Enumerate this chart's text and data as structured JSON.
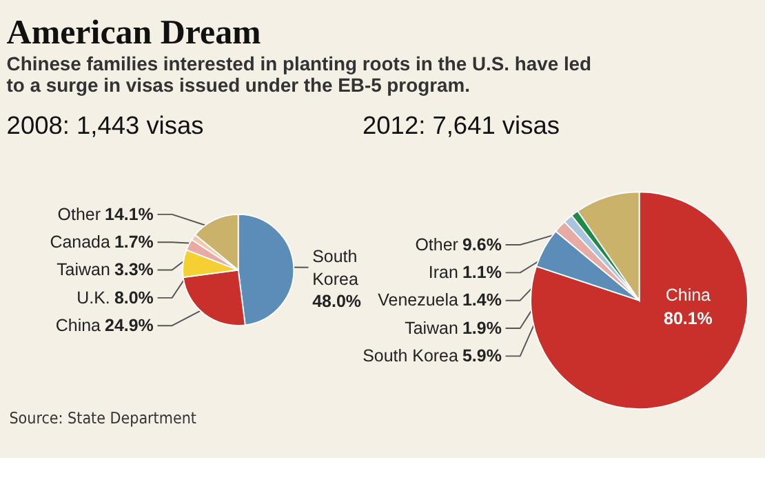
{
  "chart_data": [
    {
      "type": "pie",
      "title": "2008: 1,443 visas",
      "annotations": [
        "American Dream",
        "Chinese families interested in planting roots in the U.S. have led to a surge in visas issued under the EB-5 program.",
        "Source: State Department"
      ],
      "categories": [
        "South Korea",
        "China",
        "U.K.",
        "Taiwan",
        "Canada",
        "Other"
      ],
      "values": [
        48.0,
        24.9,
        8.0,
        3.3,
        1.7,
        14.1
      ],
      "value_labels": [
        "48.0%",
        "24.9%",
        "8.0%",
        "3.3%",
        "1.7%",
        "14.1%"
      ],
      "colors": [
        "#5b8db8",
        "#c9302c",
        "#f5d033",
        "#e8aaa5",
        "#f4c9b0",
        "#cbb26b"
      ]
    },
    {
      "type": "pie",
      "title": "2012: 7,641 visas",
      "categories": [
        "China",
        "South Korea",
        "Taiwan",
        "Venezuela",
        "Iran",
        "Other"
      ],
      "values": [
        80.1,
        5.9,
        1.9,
        1.4,
        1.1,
        9.6
      ],
      "value_labels": [
        "80.1%",
        "5.9%",
        "1.9%",
        "1.4%",
        "1.1%",
        "9.6%"
      ],
      "colors": [
        "#c9302c",
        "#5b8db8",
        "#e8aaa5",
        "#a9c4dc",
        "#1e8a4a",
        "#cbb26b"
      ]
    }
  ]
}
